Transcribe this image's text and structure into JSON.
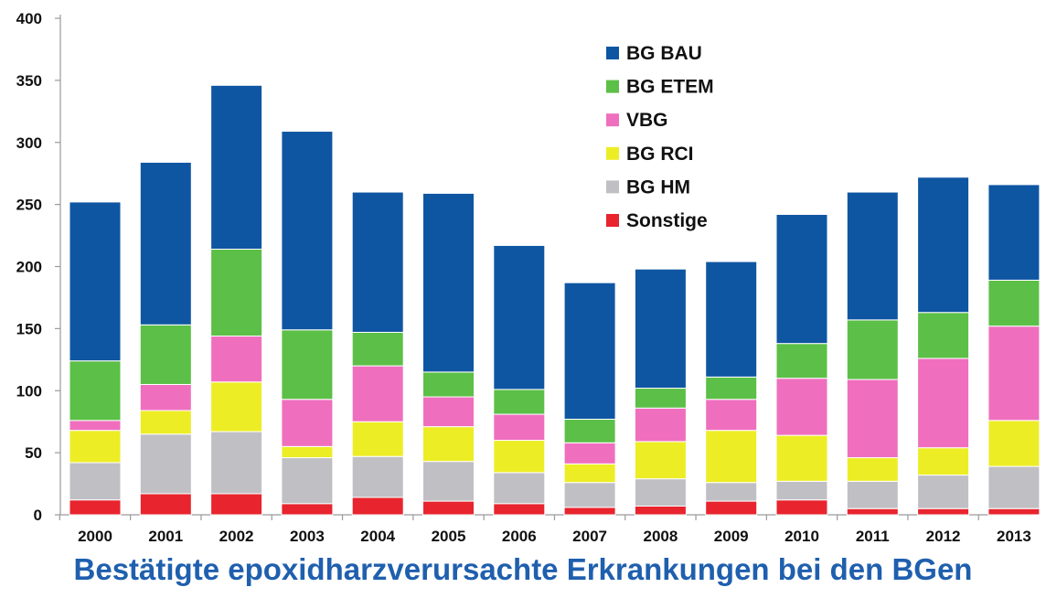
{
  "chart_data": {
    "type": "bar",
    "stacked": true,
    "title": "Bestätigte epoxidharzverursachte Erkrankungen bei den BGen",
    "xlabel": "",
    "ylabel": "",
    "ylim": [
      0,
      400
    ],
    "yticks": [
      "0",
      "50",
      "100",
      "150",
      "200",
      "250",
      "300",
      "350",
      "400"
    ],
    "grid": false,
    "legend_position": "top-right",
    "categories": [
      "2000",
      "2001",
      "2002",
      "2003",
      "2004",
      "2005",
      "2006",
      "2007",
      "2008",
      "2009",
      "2010",
      "2011",
      "2012",
      "2013"
    ],
    "series": [
      {
        "name": "Sonstige",
        "color": "#e8242e",
        "values": [
          12,
          17,
          17,
          9,
          14,
          11,
          9,
          6,
          7,
          11,
          12,
          5,
          5,
          5
        ]
      },
      {
        "name": "BG HM",
        "color": "#c0c0c4",
        "values": [
          30,
          48,
          50,
          37,
          33,
          32,
          25,
          20,
          22,
          15,
          15,
          22,
          27,
          34
        ]
      },
      {
        "name": "BG RCI",
        "color": "#eded26",
        "values": [
          26,
          19,
          40,
          9,
          28,
          28,
          26,
          15,
          30,
          42,
          37,
          19,
          22,
          37
        ]
      },
      {
        "name": "VBG",
        "color": "#ef6fbe",
        "values": [
          8,
          21,
          37,
          38,
          45,
          24,
          21,
          17,
          27,
          25,
          46,
          63,
          72,
          76
        ]
      },
      {
        "name": "BG ETEM",
        "color": "#5cbf47",
        "values": [
          48,
          48,
          70,
          56,
          27,
          20,
          20,
          19,
          16,
          18,
          28,
          48,
          37,
          37
        ]
      },
      {
        "name": "BG BAU",
        "color": "#0f56a2",
        "values": [
          128,
          131,
          132,
          160,
          113,
          144,
          116,
          110,
          96,
          93,
          104,
          103,
          109,
          77
        ]
      }
    ],
    "legend_order": [
      "BG BAU",
      "BG ETEM",
      "VBG",
      "BG RCI",
      "BG HM",
      "Sonstige"
    ]
  }
}
